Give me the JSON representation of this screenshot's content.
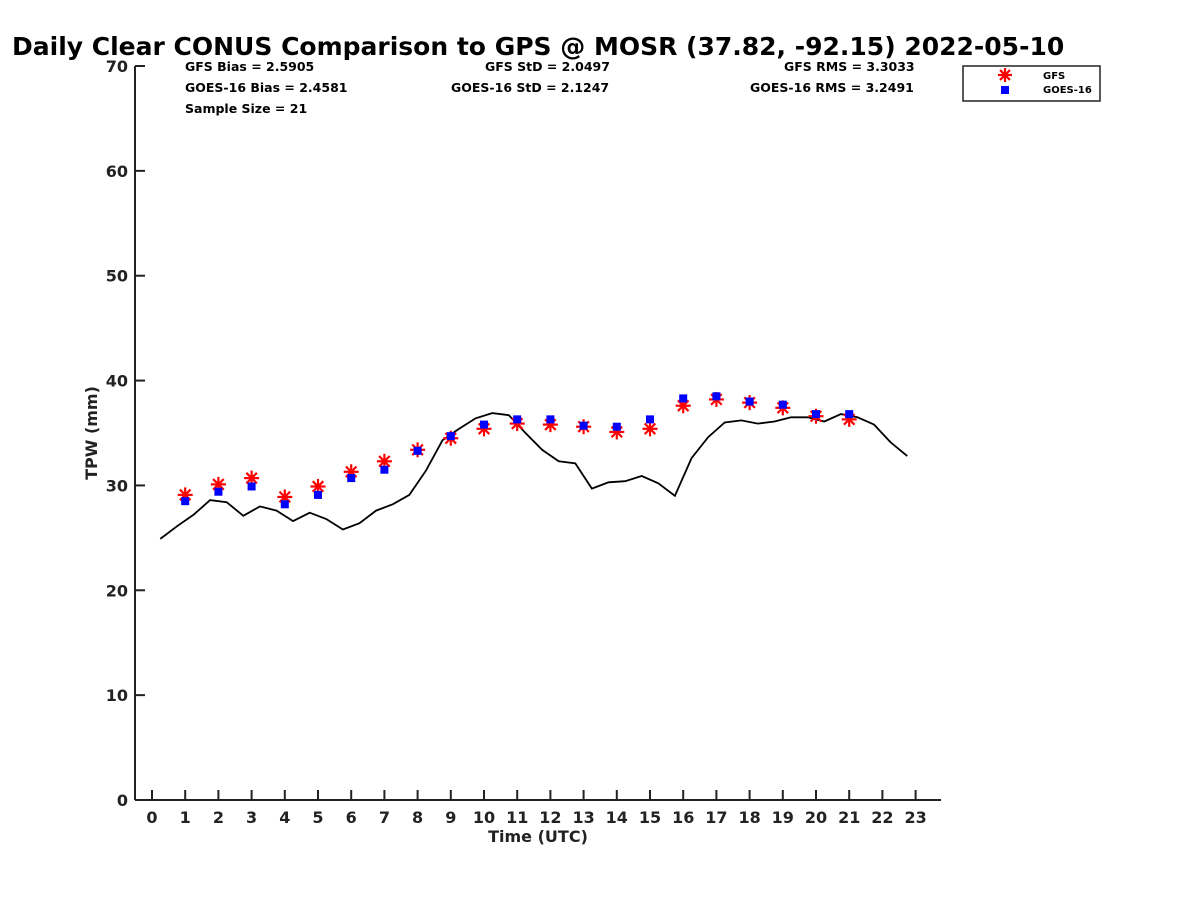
{
  "chart_data": {
    "type": "line+scatter",
    "title": "Daily Clear CONUS Comparison to GPS @ MOSR (37.82, -92.15) 2022-05-10",
    "xlabel": "Time (UTC)",
    "ylabel": "TPW (mm)",
    "xlim": [
      -0.5,
      23.7
    ],
    "ylim": [
      0,
      70
    ],
    "xticks": [
      0,
      1,
      2,
      3,
      4,
      5,
      6,
      7,
      8,
      9,
      10,
      11,
      12,
      13,
      14,
      15,
      16,
      17,
      18,
      19,
      20,
      21,
      22,
      23
    ],
    "yticks": [
      0,
      10,
      20,
      30,
      40,
      50,
      60,
      70
    ],
    "stats": {
      "gfs_bias": "GFS Bias = 2.5905",
      "goes_bias": "GOES-16 Bias = 2.4581",
      "sample_size": "Sample Size = 21",
      "gfs_std": "GFS StD = 2.0497",
      "goes_std": "GOES-16 StD = 2.1247",
      "gfs_rms": "GFS RMS = 3.3033",
      "goes_rms": "GOES-16 RMS = 3.2491"
    },
    "legend": {
      "position": "top-right",
      "entries": [
        "GFS",
        "GOES-16"
      ]
    },
    "series": [
      {
        "name": "GPS",
        "kind": "line",
        "color": "#000000",
        "x": [
          0.25,
          0.75,
          1.25,
          1.75,
          2.25,
          2.75,
          3.25,
          3.75,
          4.25,
          4.75,
          5.25,
          5.75,
          6.25,
          6.75,
          7.25,
          7.75,
          8.25,
          8.75,
          9.25,
          9.75,
          10.25,
          10.75,
          11.25,
          11.75,
          12.25,
          12.75,
          13.25,
          13.75,
          14.25,
          14.75,
          15.25,
          15.75,
          16.25,
          16.75,
          17.25,
          17.75,
          18.25,
          18.75,
          19.25,
          19.75,
          20.25,
          20.75,
          21.25,
          21.75,
          22.25,
          22.75
        ],
        "values": [
          24.9,
          26.1,
          27.2,
          28.6,
          28.4,
          27.1,
          28.0,
          27.6,
          26.6,
          27.4,
          26.8,
          25.8,
          26.4,
          27.6,
          28.2,
          29.1,
          31.4,
          34.3,
          35.4,
          36.4,
          36.9,
          36.7,
          35.0,
          33.4,
          32.3,
          32.1,
          29.7,
          30.3,
          30.4,
          30.9,
          30.2,
          29.0,
          32.6,
          34.6,
          36.0,
          36.2,
          35.9,
          36.1,
          36.5,
          36.5,
          36.1,
          36.8,
          36.5,
          35.8,
          34.1,
          32.8
        ]
      },
      {
        "name": "GFS",
        "kind": "star",
        "color": "#ff0000",
        "x": [
          1,
          2,
          3,
          4,
          5,
          6,
          7,
          8,
          9,
          10,
          11,
          12,
          13,
          14,
          15,
          16,
          17,
          18,
          19,
          20,
          21
        ],
        "values": [
          29.1,
          30.1,
          30.7,
          28.9,
          29.9,
          31.3,
          32.3,
          33.4,
          34.5,
          35.4,
          35.9,
          35.8,
          35.6,
          35.1,
          35.4,
          37.6,
          38.2,
          37.9,
          37.4,
          36.6,
          36.3
        ]
      },
      {
        "name": "GOES-16",
        "kind": "square",
        "color": "#0000ff",
        "x": [
          1,
          2,
          3,
          4,
          5,
          6,
          7,
          8,
          9,
          10,
          11,
          12,
          13,
          14,
          15,
          16,
          17,
          18,
          19,
          20,
          21
        ],
        "values": [
          28.5,
          29.4,
          29.9,
          28.2,
          29.1,
          30.7,
          31.5,
          33.3,
          34.7,
          35.8,
          36.3,
          36.3,
          35.7,
          35.6,
          36.3,
          38.3,
          38.5,
          38.0,
          37.7,
          36.8,
          36.8
        ]
      }
    ]
  }
}
